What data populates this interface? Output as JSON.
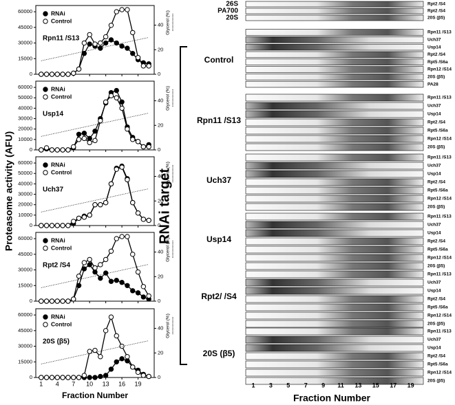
{
  "figure": {
    "ylabel": "Proteasome activity (AFU)",
    "xlabel": "Fraction Number"
  },
  "chart_data": [
    {
      "type": "line",
      "title": "Rpn11 /S13",
      "x": [
        1,
        2,
        3,
        4,
        5,
        6,
        7,
        8,
        9,
        10,
        11,
        12,
        13,
        14,
        15,
        16,
        17,
        18,
        19,
        20,
        21
      ],
      "xlim": [
        0,
        22
      ],
      "xticks": [
        1,
        4,
        7,
        10,
        13,
        16,
        19
      ],
      "xtick_labels": false,
      "ylim": [
        0,
        66000
      ],
      "yticks": [
        0,
        15000,
        30000,
        45000,
        60000
      ],
      "y2lim": [
        0,
        56
      ],
      "y2ticks": [
        0,
        20,
        40
      ],
      "y2label": "Glycerol (%)",
      "series": [
        {
          "name": "RNAi",
          "color": "#000000",
          "marker": "filled",
          "values": [
            0,
            0,
            0,
            0,
            0,
            0,
            1000,
            5000,
            20000,
            29000,
            27000,
            25000,
            30000,
            33000,
            30000,
            27000,
            25000,
            20000,
            14000,
            11000,
            10000
          ]
        },
        {
          "name": "Control",
          "color": "#000000",
          "marker": "open",
          "values": [
            0,
            0,
            0,
            0,
            0,
            0,
            1000,
            5000,
            30000,
            38000,
            29000,
            30000,
            36000,
            47000,
            60000,
            62000,
            62000,
            40000,
            16000,
            8000,
            8000
          ]
        },
        {
          "axis": "y2",
          "style": "dotted",
          "color": "#000000",
          "x": [
            1,
            21
          ],
          "values": [
            11,
            30
          ]
        }
      ]
    },
    {
      "type": "line",
      "title": "Usp14",
      "x": [
        1,
        2,
        3,
        4,
        5,
        6,
        7,
        8,
        9,
        10,
        11,
        12,
        13,
        14,
        15,
        16,
        17,
        18,
        19,
        20,
        21
      ],
      "xlim": [
        0,
        22
      ],
      "xticks": [
        1,
        4,
        7,
        10,
        13,
        16,
        19
      ],
      "xtick_labels": false,
      "ylim": [
        0,
        66000
      ],
      "yticks": [
        0,
        10000,
        20000,
        30000,
        40000,
        50000,
        60000
      ],
      "y2lim": [
        0,
        56
      ],
      "y2ticks": [
        0,
        20,
        40
      ],
      "y2label": "Glycerol (%)",
      "series": [
        {
          "name": "RNAi",
          "color": "#000000",
          "marker": "filled",
          "values": [
            0,
            1000,
            0,
            0,
            0,
            0,
            2000,
            15000,
            16000,
            11000,
            18000,
            30000,
            45000,
            55000,
            57000,
            46000,
            22000,
            12000,
            8000,
            3000,
            5000
          ]
        },
        {
          "name": "Control",
          "color": "#000000",
          "marker": "open",
          "values": [
            0,
            2000,
            0,
            0,
            0,
            0,
            3000,
            10000,
            11000,
            7000,
            9000,
            28000,
            46000,
            52000,
            50000,
            40000,
            20000,
            10000,
            8000,
            3000,
            3000
          ]
        },
        {
          "axis": "y2",
          "style": "dotted",
          "color": "#000000",
          "x": [
            1,
            21
          ],
          "values": [
            11,
            30
          ]
        }
      ]
    },
    {
      "type": "line",
      "title": "Uch37",
      "x": [
        1,
        2,
        3,
        4,
        5,
        6,
        7,
        8,
        9,
        10,
        11,
        12,
        13,
        14,
        15,
        16,
        17,
        18,
        19,
        20,
        21
      ],
      "xlim": [
        0,
        22
      ],
      "xticks": [
        1,
        4,
        7,
        10,
        13,
        16,
        19
      ],
      "xtick_labels": false,
      "ylim": [
        0,
        66000
      ],
      "yticks": [
        0,
        10000,
        20000,
        30000,
        40000,
        50000,
        60000
      ],
      "y2lim": [
        0,
        56
      ],
      "y2ticks": [
        0,
        20,
        40
      ],
      "y2label": "Glycerol (%)",
      "series": [
        {
          "name": "RNAi",
          "color": "#000000",
          "marker": "filled",
          "values": [
            0,
            0,
            0,
            0,
            0,
            0,
            2000,
            7000,
            9000,
            10000,
            20000,
            20000,
            22000,
            40000,
            55000,
            57000,
            45000,
            22000,
            12000,
            6000,
            5000
          ]
        },
        {
          "name": "Control",
          "color": "#000000",
          "marker": "open",
          "values": [
            0,
            0,
            0,
            0,
            0,
            0,
            4000,
            7000,
            8000,
            10000,
            20000,
            20000,
            22000,
            40000,
            54000,
            56000,
            44000,
            22000,
            12000,
            6000,
            5000
          ]
        },
        {
          "axis": "y2",
          "style": "dotted",
          "color": "#000000",
          "x": [
            1,
            21
          ],
          "values": [
            11,
            30
          ]
        }
      ]
    },
    {
      "type": "line",
      "title": "Rpt2 /S4",
      "x": [
        1,
        2,
        3,
        4,
        5,
        6,
        7,
        8,
        9,
        10,
        11,
        12,
        13,
        14,
        15,
        16,
        17,
        18,
        19,
        20,
        21
      ],
      "xlim": [
        0,
        22
      ],
      "xticks": [
        1,
        4,
        7,
        10,
        13,
        16,
        19
      ],
      "xtick_labels": false,
      "ylim": [
        0,
        66000
      ],
      "yticks": [
        0,
        15000,
        30000,
        45000,
        60000
      ],
      "y2lim": [
        0,
        56
      ],
      "y2ticks": [
        0,
        20,
        40
      ],
      "y2label": "Glycerol (%)",
      "series": [
        {
          "name": "RNAi",
          "color": "#000000",
          "marker": "filled",
          "values": [
            0,
            0,
            0,
            0,
            0,
            0,
            2000,
            15000,
            31000,
            35000,
            28000,
            22000,
            27000,
            19000,
            20000,
            18000,
            15000,
            10000,
            8000,
            4000,
            2000
          ]
        },
        {
          "name": "Control",
          "color": "#000000",
          "marker": "open",
          "values": [
            0,
            0,
            0,
            0,
            0,
            0,
            2000,
            24000,
            37000,
            40000,
            32000,
            35000,
            40000,
            48000,
            60000,
            62000,
            62000,
            45000,
            28000,
            14000,
            5000
          ]
        },
        {
          "axis": "y2",
          "style": "dotted",
          "color": "#000000",
          "x": [
            1,
            21
          ],
          "values": [
            11,
            30
          ]
        }
      ]
    },
    {
      "type": "line",
      "title": "20S (β5)",
      "x": [
        1,
        2,
        3,
        4,
        5,
        6,
        7,
        8,
        9,
        10,
        11,
        12,
        13,
        14,
        15,
        16,
        17,
        18,
        19,
        20,
        21
      ],
      "xlim": [
        0,
        22
      ],
      "xticks": [
        1,
        4,
        7,
        10,
        13,
        16,
        19
      ],
      "xtick_labels": true,
      "ylim": [
        0,
        66000
      ],
      "yticks": [
        0,
        15000,
        30000,
        45000,
        60000
      ],
      "y2lim": [
        0,
        56
      ],
      "y2ticks": [
        0,
        20,
        40
      ],
      "y2label": "Glycerol (%)",
      "series": [
        {
          "name": "RNAi",
          "color": "#000000",
          "marker": "filled",
          "values": [
            0,
            0,
            0,
            0,
            0,
            0,
            0,
            0,
            0,
            0,
            0,
            1000,
            2000,
            8000,
            15000,
            18000,
            16000,
            10000,
            7000,
            3000,
            1000
          ]
        },
        {
          "name": "Control",
          "color": "#000000",
          "marker": "open",
          "values": [
            0,
            0,
            0,
            0,
            0,
            0,
            0,
            0,
            2000,
            25000,
            26000,
            20000,
            45000,
            58000,
            40000,
            30000,
            20000,
            10000,
            5000,
            2000,
            1000
          ]
        },
        {
          "axis": "y2",
          "style": "dotted",
          "color": "#000000",
          "x": [
            1,
            21
          ],
          "values": [
            11,
            30
          ]
        }
      ]
    }
  ],
  "blots": {
    "header": [
      "26S",
      "PA700",
      "20S"
    ],
    "header_rows": [
      "Rpt2 /S4",
      "Rpt2 /S4",
      "20S (β5)"
    ],
    "ylabel": "RNAi target",
    "groups": [
      {
        "target": "Control",
        "rows": [
          "Rpn11 /S13",
          "Uch37",
          "Usp14",
          "Rpt2 /S4",
          "Rpt5 /S6a",
          "Rpn12 /S14",
          "20S (β5)",
          "PA28"
        ]
      },
      {
        "target": "Rpn11 /S13",
        "rows": [
          "Rpn11 /S13",
          "Uch37",
          "Usp14",
          "Rpt2 /S4",
          "Rpt5 /S6a",
          "Rpn12 /S14",
          "20S (β5)"
        ]
      },
      {
        "target": "Uch37",
        "rows": [
          "Rpn11 /S13",
          "Uch37",
          "Usp14",
          "Rpt2 /S4",
          "Rpt5 /S6a",
          "Rpn12 /S14",
          "20S (β5)"
        ]
      },
      {
        "target": "Usp14",
        "rows": [
          "Rpn11 /S13",
          "Uch37",
          "Usp14",
          "Rpt2 /S4",
          "Rpt5 /S6a",
          "Rpn12 /S14",
          "20S (β5)"
        ]
      },
      {
        "target": "Rpt2/ /S4",
        "rows": [
          "Rpn11 /S13",
          "Uch37",
          "Usp14",
          "Rpt2 /S4",
          "Rpt5 /S6a",
          "Rpn12 /S14",
          "20S (β5)"
        ]
      },
      {
        "target": "20S (β5)",
        "rows": [
          "Rpn11 /S13",
          "Uch37",
          "Usp14",
          "Rpt2 /S4",
          "Rpt5 /S6a",
          "Rpn12 /S14",
          "20S (β5)"
        ]
      }
    ],
    "xticks": [
      1,
      3,
      5,
      7,
      9,
      11,
      13,
      15,
      17,
      19
    ],
    "xlabel": "Fraction Number"
  }
}
